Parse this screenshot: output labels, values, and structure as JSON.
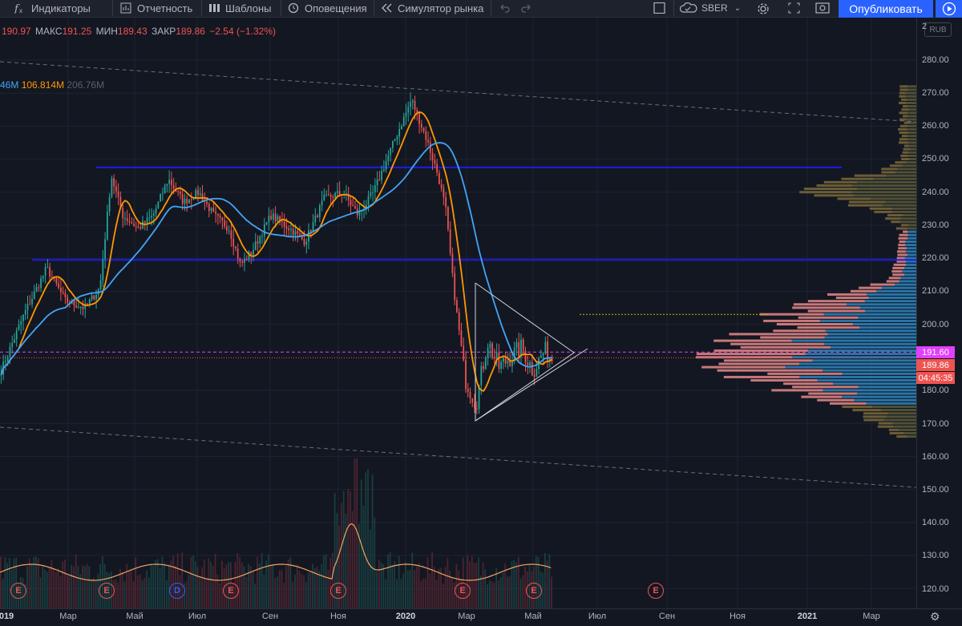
{
  "toolbar": {
    "indicators": "Индикаторы",
    "report": "Отчетность",
    "templates": "Шаблоны",
    "alerts": "Оповещения",
    "simulator": "Симулятор рынка",
    "symbol": "SBER",
    "publish": "Опубликовать"
  },
  "legend": {
    "open": "190.97",
    "high_label": "МАКС",
    "high": "191.25",
    "low_label": "МИН",
    "low": "189.43",
    "close_label": "ЗАКР",
    "close": "189.86",
    "change": "−2.54 (−1.32%)",
    "vol_a": "46M",
    "vol_b": "106.814M",
    "vol_c": "206.76M"
  },
  "currency": "RUB",
  "price_axis": {
    "ticks": [
      "2",
      "280.00",
      "270.00",
      "260.00",
      "250.00",
      "240.00",
      "230.00",
      "220.00",
      "210.00",
      "200.00",
      "180.00",
      "170.00",
      "160.00",
      "150.00",
      "140.00",
      "130.00",
      "120.00"
    ],
    "labels": {
      "alert_price": "191.60",
      "last_price": "189.86",
      "countdown": "04:45:35"
    }
  },
  "time_axis": [
    "019",
    "Мар",
    "Май",
    "Июл",
    "Сен",
    "Ноя",
    "2020",
    "Мар",
    "Май",
    "Июл",
    "Сен",
    "Ноя",
    "2021",
    "Мар"
  ],
  "events": [
    "E",
    "E",
    "D",
    "E",
    "E",
    "E",
    "E",
    "E"
  ],
  "colors": {
    "up": "#26a69a",
    "down": "#ef5350",
    "ma_fast": "#ff9800",
    "ma_slow": "#42a5f5",
    "level_line": "#1c1ce8",
    "vp_up": "#2e86c1",
    "vp_down": "#e88a8a",
    "vp_up_outside": "#5c5a3a",
    "vp_down_outside": "#7a6a3a",
    "publish": "#2962ff"
  },
  "chart_data": {
    "type": "candlestick",
    "symbol": "SBER",
    "ylim": [
      116,
      284
    ],
    "price_ticks": [
      120,
      130,
      140,
      150,
      160,
      170,
      180,
      200,
      210,
      220,
      230,
      240,
      250,
      260,
      270,
      280
    ],
    "horizontal_levels": [
      247.5,
      219.5
    ],
    "pink_level": 191.6,
    "last_price": 189.86,
    "close_anchors": [
      {
        "t": 0.0,
        "v": 186
      },
      {
        "t": 0.03,
        "v": 203
      },
      {
        "t": 0.06,
        "v": 217
      },
      {
        "t": 0.085,
        "v": 207
      },
      {
        "t": 0.11,
        "v": 205
      },
      {
        "t": 0.13,
        "v": 211
      },
      {
        "t": 0.145,
        "v": 245
      },
      {
        "t": 0.16,
        "v": 233
      },
      {
        "t": 0.18,
        "v": 229
      },
      {
        "t": 0.2,
        "v": 233
      },
      {
        "t": 0.22,
        "v": 244
      },
      {
        "t": 0.24,
        "v": 237
      },
      {
        "t": 0.26,
        "v": 240
      },
      {
        "t": 0.28,
        "v": 233
      },
      {
        "t": 0.3,
        "v": 229
      },
      {
        "t": 0.315,
        "v": 218
      },
      {
        "t": 0.33,
        "v": 222
      },
      {
        "t": 0.355,
        "v": 233
      },
      {
        "t": 0.38,
        "v": 229
      },
      {
        "t": 0.4,
        "v": 225
      },
      {
        "t": 0.425,
        "v": 238
      },
      {
        "t": 0.45,
        "v": 240
      },
      {
        "t": 0.47,
        "v": 233
      },
      {
        "t": 0.49,
        "v": 240
      },
      {
        "t": 0.52,
        "v": 257
      },
      {
        "t": 0.54,
        "v": 268
      },
      {
        "t": 0.56,
        "v": 256
      },
      {
        "t": 0.575,
        "v": 245
      },
      {
        "t": 0.585,
        "v": 235
      },
      {
        "t": 0.595,
        "v": 212
      },
      {
        "t": 0.61,
        "v": 184
      },
      {
        "t": 0.625,
        "v": 176
      },
      {
        "t": 0.64,
        "v": 195
      },
      {
        "t": 0.655,
        "v": 187
      },
      {
        "t": 0.67,
        "v": 190
      },
      {
        "t": 0.685,
        "v": 193
      },
      {
        "t": 0.7,
        "v": 186
      },
      {
        "t": 0.715,
        "v": 192
      },
      {
        "t": 0.725,
        "v": 190
      }
    ]
  }
}
